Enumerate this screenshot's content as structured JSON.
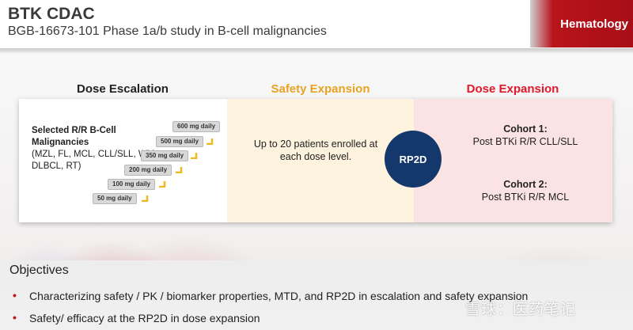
{
  "header": {
    "title": "BTK CDAC",
    "subtitle": "BGB-16673-101 Phase 1a/b study in B-cell malignancies",
    "tag": "Hematology"
  },
  "columns": {
    "escalation": "Dose Escalation",
    "safety": "Safety Expansion",
    "expansion": "Dose Expansion"
  },
  "escalation": {
    "selected_title_1": "Selected R/R B-Cell",
    "selected_title_2": "Malignancies",
    "selected_list": "(MZL, FL, MCL, CLL/SLL, WM, DLBCL, RT)",
    "steps": [
      "50 mg daily",
      "100 mg daily",
      "200 mg daily",
      "350 mg daily",
      "500 mg daily",
      "600 mg daily"
    ]
  },
  "safety": {
    "text": "Up to 20 patients enrolled at each dose level."
  },
  "rp2d": "RP2D",
  "cohorts": [
    {
      "title": "Cohort 1:",
      "desc": "Post BTKi R/R CLL/SLL"
    },
    {
      "title": "Cohort 2:",
      "desc": "Post BTKi R/R MCL"
    }
  ],
  "objectives": {
    "title": "Objectives",
    "items": [
      "Characterizing safety / PK / biomarker properties, MTD, and RP2D in escalation and safety expansion",
      "Safety/ efficacy at the RP2D in dose expansion"
    ]
  },
  "watermark": "雪球：医药笔记",
  "colors": {
    "safety": "#e8a324",
    "expansion": "#e2182a",
    "rp2d_circle": "#14386c",
    "tag": "#b8141b"
  }
}
